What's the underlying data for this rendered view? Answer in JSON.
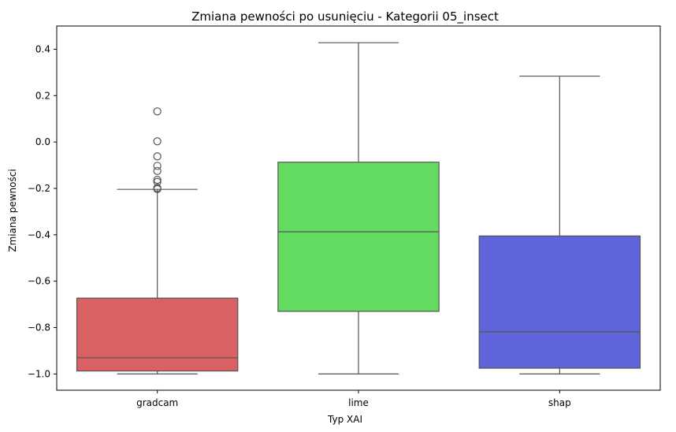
{
  "chart_data": {
    "type": "box",
    "title": "Zmiana pewności po usunięciu - Kategorii 05_insect",
    "xlabel": "Typ XAI",
    "ylabel": "Zmiana pewności",
    "ylim": [
      -1.07,
      0.5
    ],
    "yticks": [
      0.4,
      0.2,
      0.0,
      -0.2,
      -0.4,
      -0.6,
      -0.8,
      -1.0
    ],
    "ytick_labels": [
      "0.4",
      "0.2",
      "0.0",
      "−0.2",
      "−0.4",
      "−0.6",
      "−0.8",
      "−1.0"
    ],
    "grid": false,
    "categories": [
      "gradcam",
      "lime",
      "shap"
    ],
    "boxes": [
      {
        "label": "gradcam",
        "color": "#d96063",
        "whisker_low": -1.0,
        "q1": -0.987,
        "median": -0.93,
        "q3": -0.673,
        "whisker_high": -0.204,
        "outliers": [
          0.132,
          0.003,
          -0.062,
          -0.103,
          -0.125,
          -0.163,
          -0.172,
          -0.198,
          -0.203
        ]
      },
      {
        "label": "lime",
        "color": "#63db60",
        "whisker_low": -1.0,
        "q1": -0.73,
        "median": -0.387,
        "q3": -0.087,
        "whisker_high": 0.428,
        "outliers": []
      },
      {
        "label": "shap",
        "color": "#6064db",
        "whisker_low": -1.0,
        "q1": -0.975,
        "median": -0.818,
        "q3": -0.405,
        "whisker_high": 0.284,
        "outliers": []
      }
    ]
  }
}
